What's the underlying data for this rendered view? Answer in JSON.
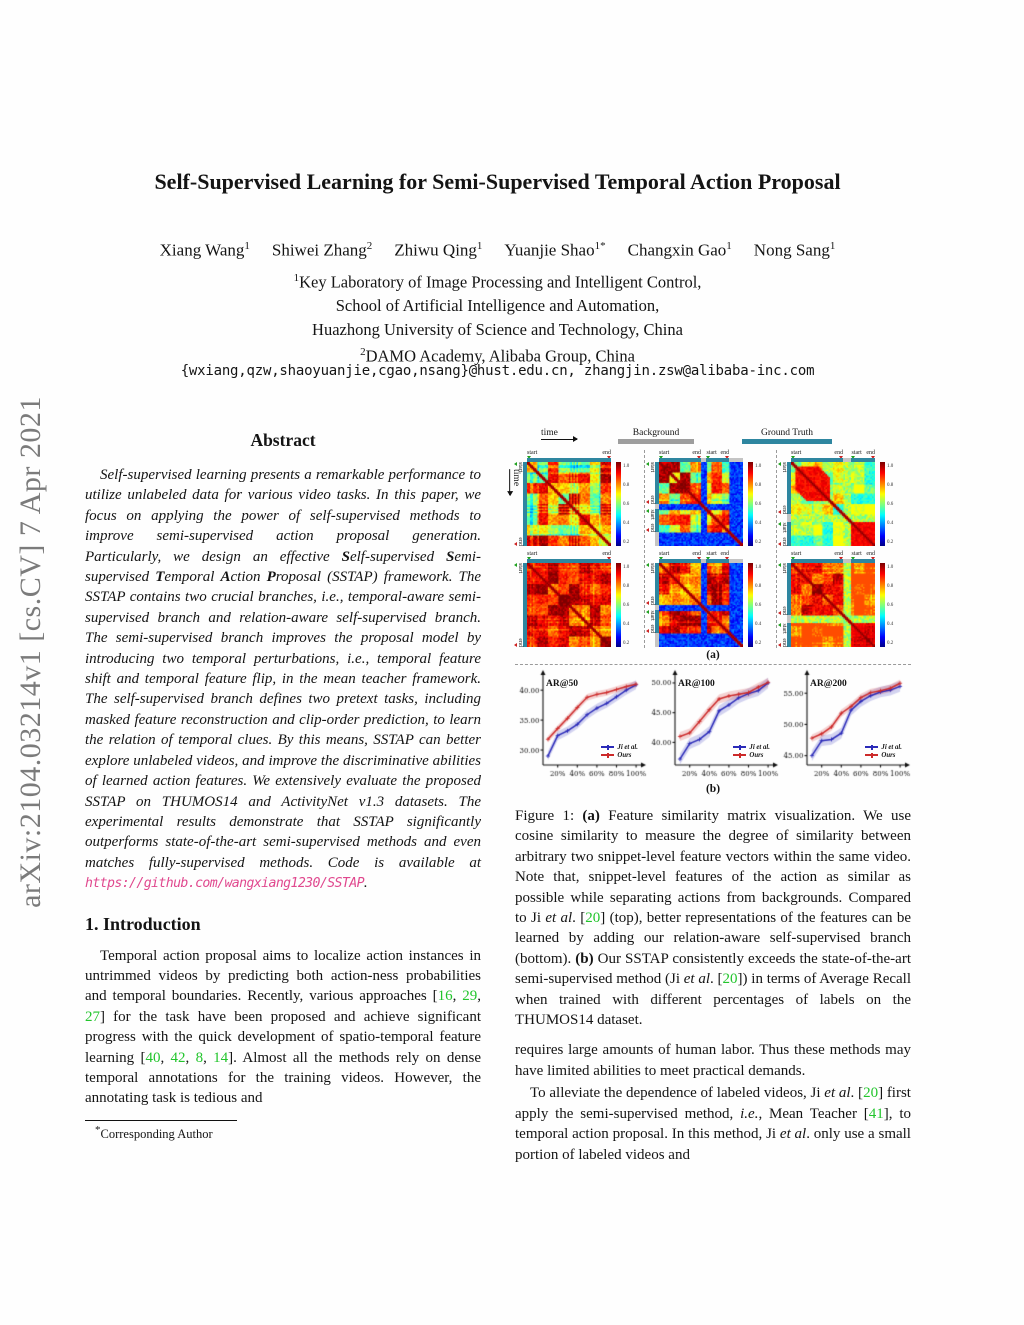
{
  "arxiv_watermark": "arXiv:2104.03214v1  [cs.CV]  7 Apr 2021",
  "header": {
    "title": "Self-Supervised Learning for Semi-Supervised Temporal Action Proposal",
    "authors": [
      {
        "name": "Xiang Wang",
        "sup": "1"
      },
      {
        "name": "Shiwei Zhang",
        "sup": "2"
      },
      {
        "name": "Zhiwu Qing",
        "sup": "1"
      },
      {
        "name": "Yuanjie Shao",
        "sup": "1*"
      },
      {
        "name": "Changxin Gao",
        "sup": "1"
      },
      {
        "name": "Nong Sang",
        "sup": "1"
      }
    ],
    "affiliations": [
      {
        "sup": "1",
        "text": "Key Laboratory of Image Processing and Intelligent Control,"
      },
      {
        "sup": "",
        "text": "School of Artificial Intelligence and Automation,"
      },
      {
        "sup": "",
        "text": "Huazhong University of Science and Technology, China"
      },
      {
        "sup": "2",
        "text": "DAMO Academy, Alibaba Group, China"
      }
    ],
    "emails": "{wxiang,qzw,shaoyuanjie,cgao,nsang}@hust.edu.cn, zhangjin.zsw@alibaba-inc.com"
  },
  "left_column": {
    "abstract_heading": "Abstract",
    "abstract_parts": [
      {
        "t": "Self-supervised learning presents a remarkable performance to utilize unlabeled data for various video tasks. In this paper, we focus on applying the power of self-supervised methods to improve semi-supervised action proposal generation. Particularly, we design an effective "
      },
      {
        "t": "S",
        "s": "b"
      },
      {
        "t": "elf-supervised "
      },
      {
        "t": "S",
        "s": "b"
      },
      {
        "t": "emi-supervised "
      },
      {
        "t": "T",
        "s": "b"
      },
      {
        "t": "emporal "
      },
      {
        "t": "A",
        "s": "b"
      },
      {
        "t": "ction "
      },
      {
        "t": "P",
        "s": "b"
      },
      {
        "t": "roposal (SSTAP) framework. The SSTAP contains two crucial branches, i.e., temporal-aware semi-supervised branch and relation-aware self-supervised branch. The semi-supervised branch improves the proposal model by introducing two temporal perturbations, i.e., temporal feature shift and temporal feature flip, in the mean teacher framework. The self-supervised branch defines two pretext tasks, including masked feature reconstruction and clip-order prediction, to learn the relation of temporal clues. By this means, SSTAP can better explore unlabeled videos, and improve the discriminative abilities of learned action features. We extensively evaluate the proposed SSTAP on THUMOS14 and ActivityNet v1.3 datasets. The experimental results demonstrate that SSTAP significantly outperforms state-of-the-art semi-supervised methods and even matches fully-supervised methods. Code is available at "
      },
      {
        "t": "https://github.com/wangxiang1230/SSTAP",
        "s": "url"
      },
      {
        "t": "."
      }
    ],
    "intro_heading": "1. Introduction",
    "intro_parts": [
      {
        "t": "Temporal action proposal aims to localize action instances in untrimmed videos by predicting both action-ness probabilities and temporal boundaries. Recently, various approaches ["
      },
      {
        "t": "16",
        "s": "cite"
      },
      {
        "t": ", "
      },
      {
        "t": "29",
        "s": "cite"
      },
      {
        "t": ", "
      },
      {
        "t": "27",
        "s": "cite"
      },
      {
        "t": "] for the task have been proposed and achieve significant progress with the quick development of spatio-temporal feature learning ["
      },
      {
        "t": "40",
        "s": "cite"
      },
      {
        "t": ", "
      },
      {
        "t": "42",
        "s": "cite"
      },
      {
        "t": ", "
      },
      {
        "t": "8",
        "s": "cite"
      },
      {
        "t": ", "
      },
      {
        "t": "14",
        "s": "cite"
      },
      {
        "t": "]. Almost all the methods rely on dense temporal annotations for the training videos. However, the annotating task is tedious and"
      }
    ],
    "footnote_star": "*",
    "footnote": "Corresponding Author"
  },
  "right_column": {
    "caption_parts": [
      {
        "t": "Figure 1: "
      },
      {
        "t": "(a)",
        "s": "b"
      },
      {
        "t": " Feature similarity matrix visualization. We use cosine similarity to measure the degree of similarity between arbitrary two snippet-level feature vectors within the same video. Note that, snippet-level features of the action as similar as possible while separating actions from backgrounds. Compared to Ji "
      },
      {
        "t": "et al",
        "s": "i"
      },
      {
        "t": ". ["
      },
      {
        "t": "20",
        "s": "cite"
      },
      {
        "t": "] (top), better representations of the features can be learned by adding our relation-aware self-supervised branch (bottom). "
      },
      {
        "t": "(b)",
        "s": "b"
      },
      {
        "t": " Our SSTAP consistently exceeds the state-of-the-art semi-supervised method (Ji "
      },
      {
        "t": "et al",
        "s": "i"
      },
      {
        "t": ". ["
      },
      {
        "t": "20",
        "s": "cite"
      },
      {
        "t": "]) in terms of Average Recall when trained with different percentages of labels on the THUMOS14 dataset."
      }
    ],
    "para1": "requires large amounts of human labor. Thus these methods may have limited abilities to meet practical demands.",
    "para2_parts": [
      {
        "t": "To alleviate the dependence of labeled videos, Ji "
      },
      {
        "t": "et al",
        "s": "i"
      },
      {
        "t": ". ["
      },
      {
        "t": "20",
        "s": "cite"
      },
      {
        "t": "] first apply the semi-supervised method, "
      },
      {
        "t": "i.e.",
        "s": "i"
      },
      {
        "t": ", Mean Teacher ["
      },
      {
        "t": "41",
        "s": "cite"
      },
      {
        "t": "], to temporal action proposal. In this method, Ji "
      },
      {
        "t": "et al",
        "s": "i"
      },
      {
        "t": ". only use a small portion of labeled videos and"
      }
    ]
  },
  "figure1": {
    "time_label": "time",
    "background_label": "Background",
    "ground_truth_label": "Ground Truth",
    "start_label": "start",
    "end_label": "end",
    "panel_a_label": "(a)",
    "panel_b_label": "(b)",
    "colorbar_ticks": [
      "1.0",
      "0.8",
      "0.6",
      "0.4",
      "0.2"
    ],
    "colors": {
      "teal_bar": "#2e86a0",
      "gray_bar": "#9e9e9e",
      "gap_gray": "#c4c4c4",
      "start_marker": "#1fa11f",
      "end_marker": "#cc2222",
      "ji_blue": "#2a2ab8",
      "ours_red": "#cc2a2a",
      "cite_green": "#22c52c",
      "url_pink": "#e0488e"
    },
    "matrices": [
      {
        "id": "ji-video1",
        "row": 0,
        "col": 0,
        "segs": [
          [
            0,
            1
          ]
        ],
        "bg": false,
        "warm": 0.7,
        "spread": 0.26,
        "lines": 0.9,
        "seed": 11
      },
      {
        "id": "ji-video2",
        "row": 0,
        "col": 1,
        "segs": [
          [
            0,
            0.5
          ],
          [
            0.565,
            0.835
          ]
        ],
        "bg": true,
        "warm": 0.7,
        "spread": 0.28,
        "lines": 0.7,
        "seed": 22
      },
      {
        "id": "ji-video3",
        "row": 0,
        "col": 2,
        "segs": [
          [
            0,
            0.62
          ],
          [
            0.72,
            1
          ]
        ],
        "bg": false,
        "warm": 0.56,
        "spread": 0.16,
        "lines": 0.8,
        "seed": 33,
        "hot_diag": [
          0.05,
          0.46
        ],
        "hot_seg2": true,
        "cross_cap": 0.62
      },
      {
        "id": "ours-video1",
        "row": 1,
        "col": 0,
        "segs": [
          [
            0,
            1
          ]
        ],
        "bg": false,
        "warm": 0.86,
        "spread": 0.14,
        "lines": 0.5,
        "seed": 44
      },
      {
        "id": "ours-video2",
        "row": 1,
        "col": 1,
        "segs": [
          [
            0,
            0.5
          ],
          [
            0.565,
            0.835
          ]
        ],
        "bg": true,
        "warm": 0.83,
        "spread": 0.16,
        "lines": 0.5,
        "seed": 55
      },
      {
        "id": "ours-video3",
        "row": 1,
        "col": 2,
        "segs": [
          [
            0,
            0.62
          ],
          [
            0.72,
            1
          ]
        ],
        "bg": false,
        "warm": 0.84,
        "spread": 0.13,
        "lines": 0.5,
        "seed": 66,
        "hot_seg2": true,
        "cross_cap": 0.8
      }
    ]
  },
  "chart_data": [
    {
      "type": "line",
      "title": "AR@50",
      "xlabel": "",
      "ylabel": "",
      "x": [
        10,
        20,
        30,
        40,
        50,
        60,
        70,
        80,
        90,
        100
      ],
      "x_ticks": [
        20,
        40,
        60,
        80,
        100
      ],
      "x_tick_labels": [
        "20%",
        "40%",
        "60%",
        "80%",
        "100%"
      ],
      "ylim": [
        27.5,
        42.2
      ],
      "y_ticks": [
        30,
        35,
        40
      ],
      "y_tick_labels": [
        "30.00",
        "35.00",
        "40.00"
      ],
      "grid": false,
      "legend_position": "lower right",
      "series": [
        {
          "name": "Ji et al.",
          "color": "#2a2ab8",
          "band": 0.75,
          "values": [
            29.0,
            32.4,
            33.2,
            34.3,
            35.9,
            37.0,
            37.8,
            38.9,
            40.0,
            40.9
          ]
        },
        {
          "name": "Ours",
          "color": "#cc2a2a",
          "band": 0.55,
          "values": [
            31.8,
            33.6,
            35.3,
            37.1,
            38.8,
            39.3,
            39.6,
            40.1,
            40.6,
            41.0
          ]
        }
      ]
    },
    {
      "type": "line",
      "title": "AR@100",
      "xlabel": "",
      "ylabel": "",
      "x": [
        10,
        20,
        30,
        40,
        50,
        60,
        70,
        80,
        90,
        100
      ],
      "x_ticks": [
        20,
        40,
        60,
        80,
        100
      ],
      "x_tick_labels": [
        "20%",
        "40%",
        "60%",
        "80%",
        "100%"
      ],
      "ylim": [
        36.2,
        51.0
      ],
      "y_ticks": [
        40,
        45,
        50
      ],
      "y_tick_labels": [
        "40.00",
        "45.00",
        "50.00"
      ],
      "grid": false,
      "legend_position": "lower right",
      "series": [
        {
          "name": "Ji et al.",
          "color": "#2a2ab8",
          "band": 0.9,
          "values": [
            37.2,
            39.8,
            40.5,
            41.8,
            45.3,
            46.3,
            47.5,
            48.2,
            48.7,
            50.0
          ]
        },
        {
          "name": "Ours",
          "color": "#cc2a2a",
          "band": 0.75,
          "values": [
            41.0,
            41.6,
            43.5,
            45.5,
            47.3,
            47.8,
            48.1,
            48.4,
            49.3,
            50.1
          ]
        }
      ]
    },
    {
      "type": "line",
      "title": "AR@200",
      "xlabel": "",
      "ylabel": "",
      "x": [
        10,
        20,
        30,
        40,
        50,
        60,
        70,
        80,
        90,
        100
      ],
      "x_ticks": [
        20,
        40,
        60,
        80,
        100
      ],
      "x_tick_labels": [
        "20%",
        "40%",
        "60%",
        "80%",
        "100%"
      ],
      "ylim": [
        43.5,
        57.6
      ],
      "y_ticks": [
        45,
        50,
        55
      ],
      "y_tick_labels": [
        "45.00",
        "50.00",
        "55.00"
      ],
      "grid": false,
      "legend_position": "lower right",
      "series": [
        {
          "name": "Ji et al.",
          "color": "#2a2ab8",
          "band": 0.85,
          "values": [
            45.0,
            47.4,
            47.6,
            48.6,
            52.3,
            53.7,
            54.6,
            55.2,
            55.5,
            56.1
          ]
        },
        {
          "name": "Ours",
          "color": "#cc2a2a",
          "band": 0.6,
          "values": [
            47.8,
            48.5,
            49.6,
            51.8,
            52.9,
            54.3,
            55.1,
            55.4,
            55.8,
            56.6
          ]
        }
      ]
    }
  ]
}
